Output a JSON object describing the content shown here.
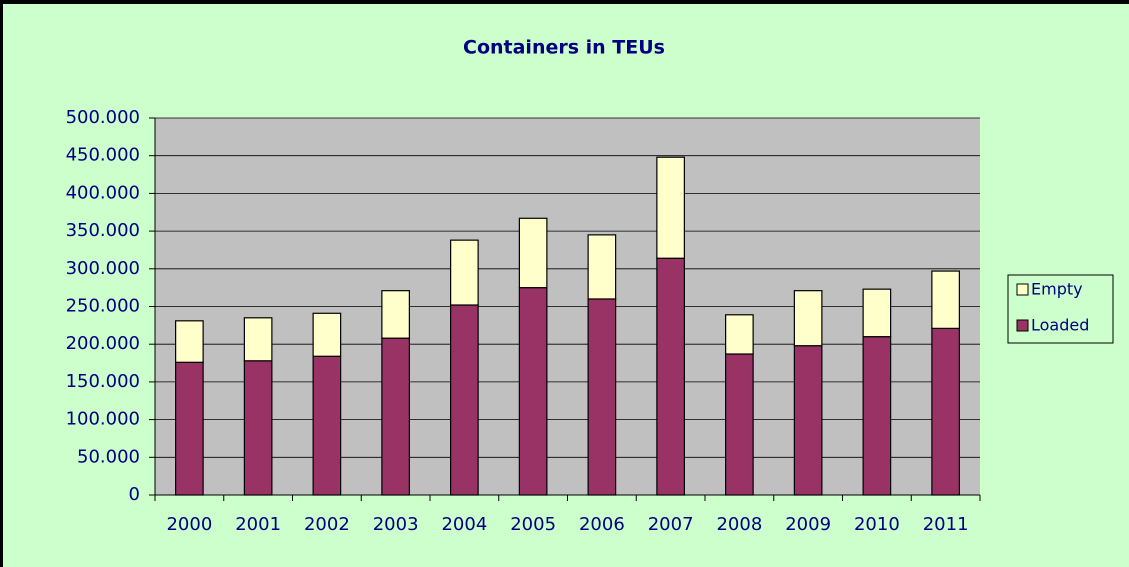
{
  "chart_data": {
    "type": "bar",
    "stacked": true,
    "title": "Containers in TEUs",
    "categories": [
      "2000",
      "2001",
      "2002",
      "2003",
      "2004",
      "2005",
      "2006",
      "2007",
      "2008",
      "2009",
      "2010",
      "2011"
    ],
    "series": [
      {
        "name": "Loaded",
        "color": "#993366",
        "values": [
          176000,
          178000,
          184000,
          208000,
          252000,
          275000,
          260000,
          314000,
          187000,
          198000,
          210000,
          221000
        ]
      },
      {
        "name": "Empty",
        "color": "#ffffcc",
        "values": [
          55000,
          57000,
          57000,
          63000,
          86000,
          92000,
          85000,
          134000,
          52000,
          73000,
          63000,
          76000
        ]
      }
    ],
    "ylim": [
      0,
      500000
    ],
    "yticks": [
      0,
      {
        "value": 50000,
        "label": "50.000"
      },
      {
        "value": 100000,
        "label": "100.000"
      },
      {
        "value": 150000,
        "label": "150.000"
      },
      {
        "value": 200000,
        "label": "200.000"
      },
      {
        "value": 250000,
        "label": "250.000"
      },
      {
        "value": 300000,
        "label": "300.000"
      },
      {
        "value": 350000,
        "label": "350.000"
      },
      {
        "value": 400000,
        "label": "400.000"
      },
      {
        "value": 450000,
        "label": "450.000"
      },
      {
        "value": 500000,
        "label": "500.000"
      }
    ],
    "grid": true,
    "legend": "right"
  }
}
